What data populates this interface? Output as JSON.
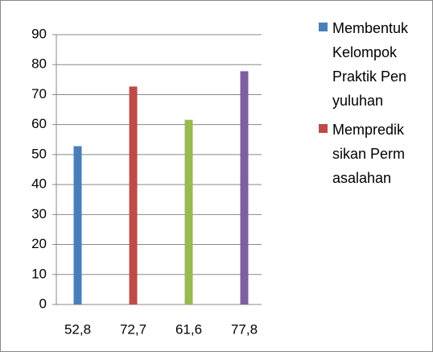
{
  "chart_data": {
    "type": "bar",
    "categories": [
      "52,8",
      "72,7",
      "61,6",
      "77,8"
    ],
    "values": [
      52.8,
      72.7,
      61.6,
      77.8
    ],
    "colors": [
      "#4a7ebb",
      "#be4b48",
      "#98b954",
      "#7d60a0"
    ],
    "ylim": [
      0,
      90
    ],
    "yticks": [
      0,
      10,
      20,
      30,
      40,
      50,
      60,
      70,
      80,
      90
    ],
    "grid": true,
    "legend_position": "right",
    "legend": [
      {
        "name": "Membentuk Kelompok Praktik Penyuluhan",
        "color": "#4a7ebb"
      },
      {
        "name": "Memprediksikan Permasalahan",
        "color": "#be4b48"
      }
    ]
  }
}
